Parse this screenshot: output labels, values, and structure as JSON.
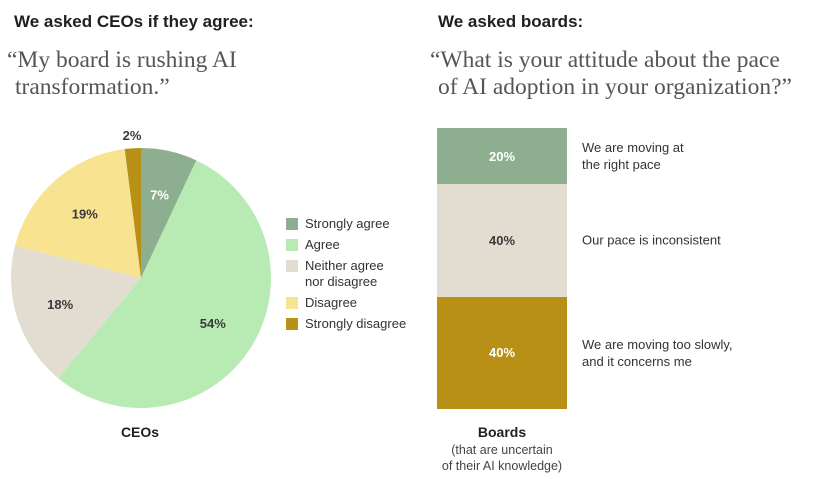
{
  "left_panel": {
    "heading": "We asked CEOs if they agree:",
    "quote_line1": "“My board is rushing AI",
    "quote_line2": "transformation.”",
    "caption": "CEOs"
  },
  "right_panel": {
    "heading": "We asked boards:",
    "quote_line1": "“What is your attitude about the pace",
    "quote_line2": "of AI adoption in your organization?”",
    "caption": "Boards",
    "caption_sub_line1": "(that are uncertain",
    "caption_sub_line2": "of their AI knowledge)"
  },
  "chart_data": [
    {
      "type": "pie",
      "series_label": "CEOs",
      "legend": {
        "placement": "right",
        "entries": [
          {
            "name": "Strongly agree",
            "color": "#8daf90"
          },
          {
            "name": "Agree",
            "color": "#b8ebb4"
          },
          {
            "name": "Neither agree nor disagree",
            "color": "#e3ddd1",
            "lines": [
              "Neither agree",
              "nor disagree"
            ]
          },
          {
            "name": "Disagree",
            "color": "#f8e391"
          },
          {
            "name": "Strongly disagree",
            "color": "#b89015"
          }
        ]
      },
      "slices": [
        {
          "name": "Strongly agree",
          "value": 7,
          "label": "7%",
          "color": "#8daf90",
          "label_color": "#ffffff"
        },
        {
          "name": "Agree",
          "value": 54,
          "label": "54%",
          "color": "#b8ebb4",
          "label_color": "#3a3a3a"
        },
        {
          "name": "Neither agree nor disagree",
          "value": 18,
          "label": "18%",
          "color": "#e3ddd1",
          "label_color": "#3a3a3a"
        },
        {
          "name": "Disagree",
          "value": 19,
          "label": "19%",
          "color": "#f8e391",
          "label_color": "#3a3a3a"
        },
        {
          "name": "Strongly disagree",
          "value": 2,
          "label": "2%",
          "color": "#b89015",
          "label_color": "#3a3a3a"
        }
      ]
    },
    {
      "type": "bar",
      "stacked": true,
      "series_label": "Boards",
      "segments": [
        {
          "name": "We are moving at the right pace",
          "lines": [
            "We are moving at",
            "the right pace"
          ],
          "value": 20,
          "label": "20%",
          "color": "#8daf90",
          "label_color": "#ffffff"
        },
        {
          "name": "Our pace is inconsistent",
          "lines": [
            "Our pace is inconsistent"
          ],
          "value": 40,
          "label": "40%",
          "color": "#e3ddd1",
          "label_color": "#3a3a3a"
        },
        {
          "name": "We are moving too slowly, and it concerns me",
          "lines": [
            "We are moving too slowly,",
            "and it concerns me"
          ],
          "value": 40,
          "label": "40%",
          "color": "#b89015",
          "label_color": "#ffffff"
        }
      ]
    }
  ]
}
